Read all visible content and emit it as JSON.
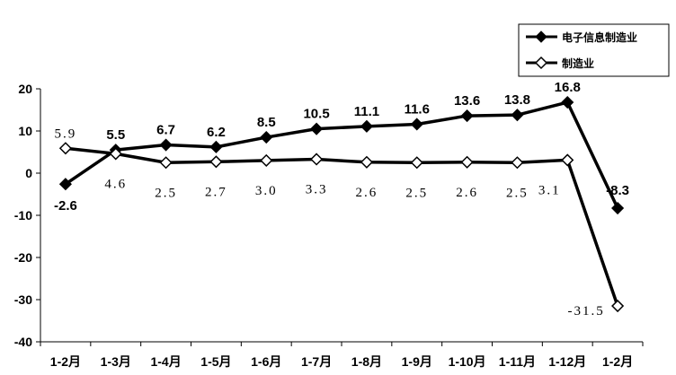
{
  "chart_data": {
    "type": "line",
    "categories": [
      "1-2月",
      "1-3月",
      "1-4月",
      "1-5月",
      "1-6月",
      "1-7月",
      "1-8月",
      "1-9月",
      "1-10月",
      "1-11月",
      "1-12月",
      "1-2月"
    ],
    "ylim": [
      -40,
      20
    ],
    "yticks": [
      "20",
      "10",
      "0",
      "-10",
      "-20",
      "-30",
      "-40"
    ],
    "grid": false,
    "legend": "top-right",
    "series": [
      {
        "name": "电子信息制造业",
        "marker": "filled-diamond",
        "values": [
          -2.6,
          5.5,
          6.7,
          6.2,
          8.5,
          10.5,
          11.1,
          11.6,
          13.6,
          13.8,
          16.8,
          -8.3
        ],
        "labels": [
          "-2.6",
          "5.5",
          "6.7",
          "6.2",
          "8.5",
          "10.5",
          "11.1",
          "11.6",
          "13.6",
          "13.8",
          "16.8",
          "-8.3"
        ]
      },
      {
        "name": "制造业",
        "marker": "hollow-diamond",
        "values": [
          5.9,
          4.6,
          2.5,
          2.7,
          3.0,
          3.3,
          2.6,
          2.5,
          2.6,
          2.5,
          3.1,
          -31.5
        ],
        "labels": [
          "5.9",
          "4.6",
          "2.5",
          "2.7",
          "3.0",
          "3.3",
          "2.6",
          "2.5",
          "2.6",
          "2.5",
          "3.1",
          "-31.5"
        ]
      }
    ]
  }
}
